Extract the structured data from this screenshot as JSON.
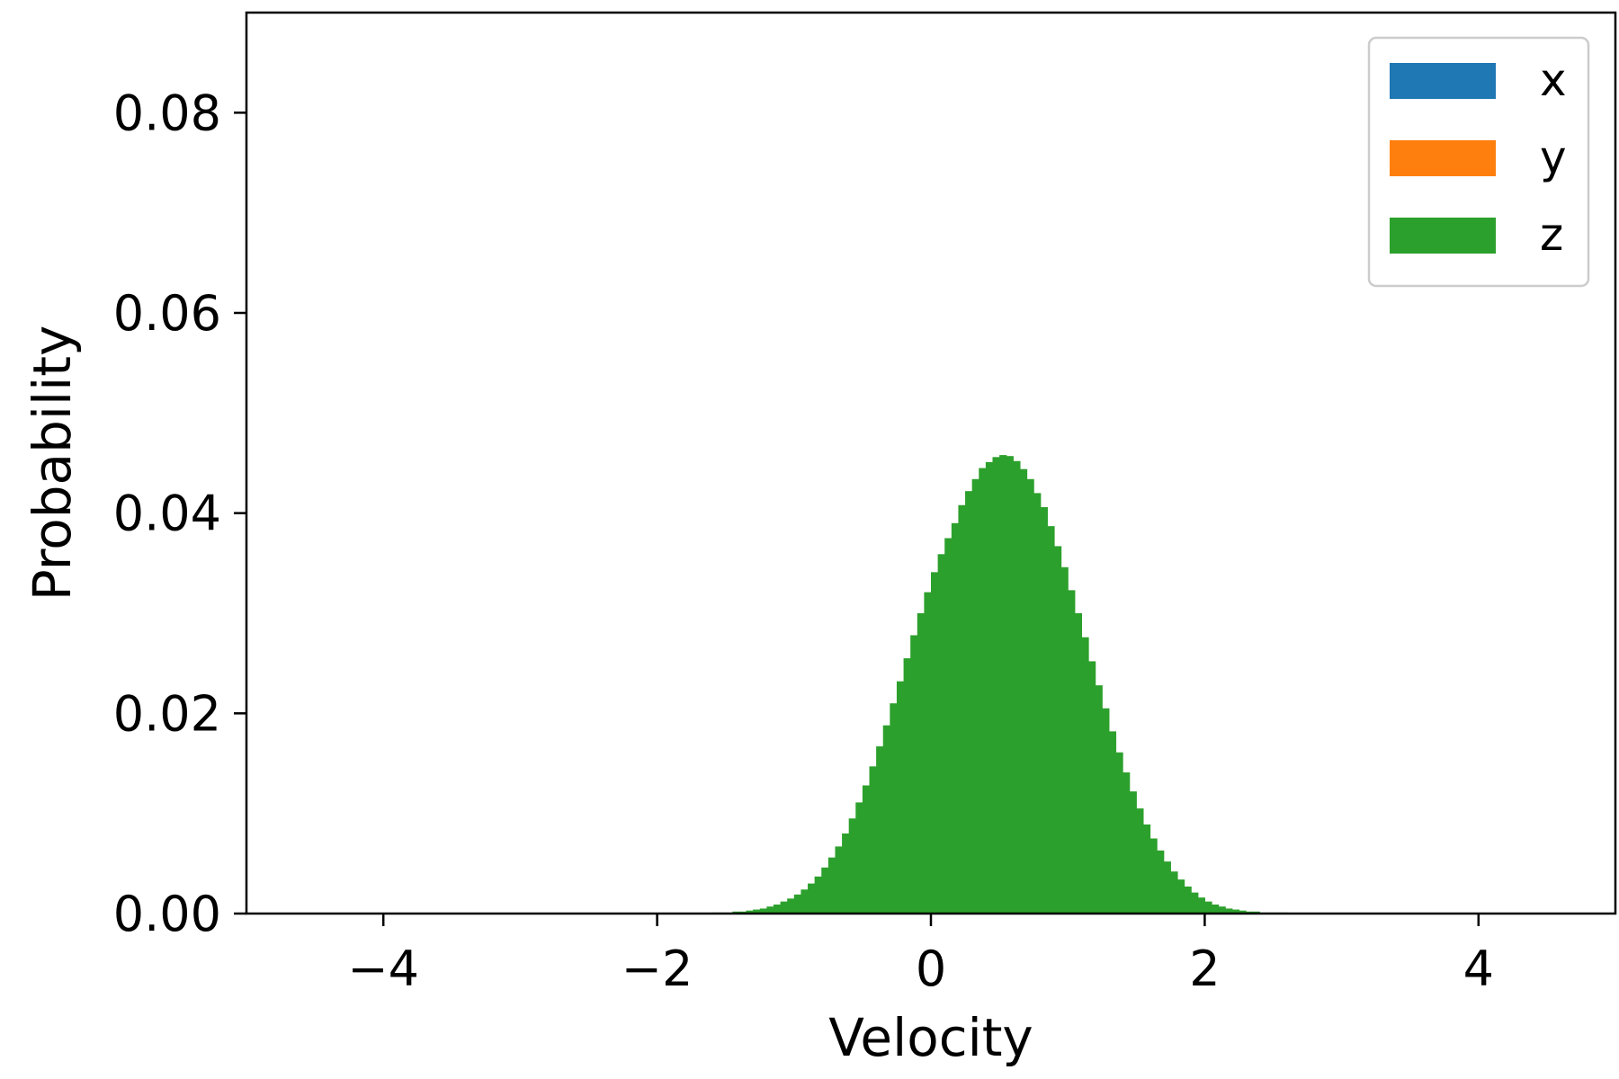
{
  "chart_data": {
    "type": "bar",
    "title": "",
    "xlabel": "Velocity",
    "ylabel": "Probability",
    "xlim": [
      -5,
      5
    ],
    "ylim": [
      0,
      0.09
    ],
    "xticks": [
      -4,
      -2,
      0,
      2,
      4
    ],
    "xtick_labels": [
      "−4",
      "−2",
      "0",
      "2",
      "4"
    ],
    "yticks": [
      0,
      0.02,
      0.04,
      0.06,
      0.08
    ],
    "ytick_labels": [
      "0.00",
      "0.02",
      "0.04",
      "0.06",
      "0.08"
    ],
    "grid": false,
    "legend_position": "top-right",
    "bin_width": 0.05,
    "bin_start": -1.6,
    "series": [
      {
        "name": "x",
        "color": "#1f77b4",
        "values": []
      },
      {
        "name": "y",
        "color": "#ff7f0e",
        "values": []
      },
      {
        "name": "z",
        "color": "#2ca02c",
        "values": [
          0.0001,
          0.0001,
          0.0001,
          0.0002,
          0.0002,
          0.0003,
          0.0004,
          0.0005,
          0.0007,
          0.0009,
          0.0012,
          0.0015,
          0.0019,
          0.0024,
          0.003,
          0.0037,
          0.0046,
          0.0056,
          0.0067,
          0.008,
          0.0095,
          0.0111,
          0.0128,
          0.0147,
          0.0167,
          0.0188,
          0.021,
          0.0232,
          0.0255,
          0.0278,
          0.03,
          0.0321,
          0.0341,
          0.0359,
          0.0375,
          0.039,
          0.0408,
          0.0422,
          0.0434,
          0.0445,
          0.0451,
          0.0456,
          0.0458,
          0.0457,
          0.0452,
          0.0444,
          0.0434,
          0.042,
          0.0406,
          0.0387,
          0.0367,
          0.0346,
          0.0323,
          0.03,
          0.0276,
          0.0252,
          0.0228,
          0.0205,
          0.0182,
          0.0161,
          0.0141,
          0.0122,
          0.0105,
          0.0089,
          0.0075,
          0.0063,
          0.0052,
          0.0042,
          0.0034,
          0.0027,
          0.0021,
          0.0016,
          0.0012,
          0.0009,
          0.0007,
          0.0005,
          0.0004,
          0.0003,
          0.0002,
          0.0002,
          0.0001,
          0.0001,
          0.0001,
          0.0001
        ]
      }
    ]
  }
}
